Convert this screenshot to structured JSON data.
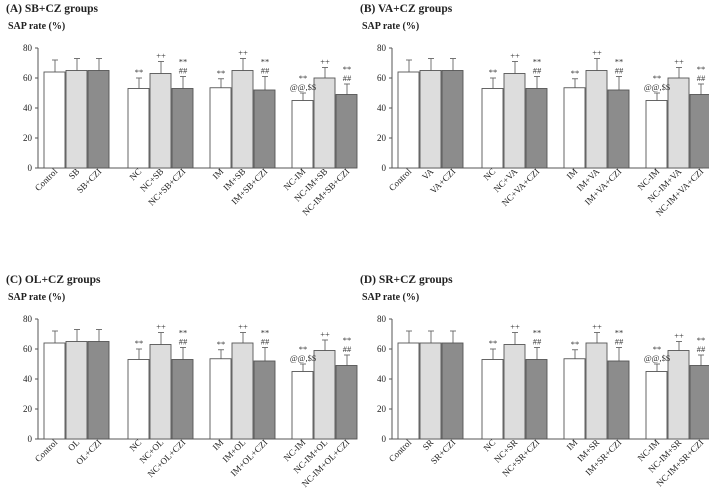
{
  "chart_data": [
    {
      "type": "bar",
      "title": "(A) SB+CZ groups",
      "ylabel": "SAP rate (%)",
      "ylim": [
        0,
        80
      ],
      "yticks": [
        "0",
        "20",
        "40",
        "60",
        "80"
      ],
      "categories": [
        "Control",
        "SB",
        "SB+CZI",
        "NC",
        "NC+SB",
        "NC+SB+CZI",
        "IM",
        "IM+SB",
        "IM+SB+CZI",
        "NC-IM",
        "NC-IM+SB",
        "NC-IM+SB+CZI"
      ],
      "values": [
        64,
        65,
        65,
        53,
        63,
        53,
        53.5,
        65,
        52,
        45,
        60,
        49
      ],
      "errors": [
        8,
        8,
        8,
        7,
        8,
        8,
        6,
        8,
        9,
        5,
        7,
        7
      ],
      "colors": [
        "#ffffff",
        "#dddddd",
        "#8c8c8c",
        "#ffffff",
        "#dddddd",
        "#8c8c8c",
        "#ffffff",
        "#dddddd",
        "#8c8c8c",
        "#ffffff",
        "#dddddd",
        "#8c8c8c"
      ],
      "annotations": [
        {
          "bar": 3,
          "lines": [
            "**"
          ]
        },
        {
          "bar": 4,
          "lines": [
            "++"
          ]
        },
        {
          "bar": 5,
          "lines": [
            "**",
            "##"
          ]
        },
        {
          "bar": 6,
          "lines": [
            "**"
          ]
        },
        {
          "bar": 7,
          "lines": [
            "++"
          ]
        },
        {
          "bar": 8,
          "lines": [
            "**",
            "##"
          ]
        },
        {
          "bar": 9,
          "lines": [
            "**",
            "@@,$$"
          ]
        },
        {
          "bar": 10,
          "lines": [
            "++"
          ]
        },
        {
          "bar": 11,
          "lines": [
            "**",
            "##"
          ]
        }
      ]
    },
    {
      "type": "bar",
      "title": "(B) VA+CZ groups",
      "ylabel": "SAP rate (%)",
      "ylim": [
        0,
        80
      ],
      "yticks": [
        "0",
        "20",
        "40",
        "60",
        "80"
      ],
      "categories": [
        "Control",
        "VA",
        "VA+CZI",
        "NC",
        "NC+VA",
        "NC+VA+CZI",
        "IM",
        "IM+VA",
        "IM+VA+CZI",
        "NC-IM",
        "NC-IM+VA",
        "NC-IM+VA+CZI"
      ],
      "values": [
        64,
        65,
        65,
        53,
        63,
        53,
        53.5,
        65,
        52,
        45,
        60,
        49
      ],
      "errors": [
        8,
        8,
        8,
        7,
        8,
        8,
        6,
        8,
        9,
        5,
        7,
        7
      ],
      "colors": [
        "#ffffff",
        "#dddddd",
        "#8c8c8c",
        "#ffffff",
        "#dddddd",
        "#8c8c8c",
        "#ffffff",
        "#dddddd",
        "#8c8c8c",
        "#ffffff",
        "#dddddd",
        "#8c8c8c"
      ],
      "annotations": [
        {
          "bar": 3,
          "lines": [
            "**"
          ]
        },
        {
          "bar": 4,
          "lines": [
            "++"
          ]
        },
        {
          "bar": 5,
          "lines": [
            "**",
            "##"
          ]
        },
        {
          "bar": 6,
          "lines": [
            "**"
          ]
        },
        {
          "bar": 7,
          "lines": [
            "++"
          ]
        },
        {
          "bar": 8,
          "lines": [
            "**",
            "##"
          ]
        },
        {
          "bar": 9,
          "lines": [
            "**",
            "@@,$$"
          ]
        },
        {
          "bar": 10,
          "lines": [
            "++"
          ]
        },
        {
          "bar": 11,
          "lines": [
            "**",
            "##"
          ]
        }
      ]
    },
    {
      "type": "bar",
      "title": "(C) OL+CZ groups",
      "ylabel": "SAP rate (%)",
      "ylim": [
        0,
        80
      ],
      "yticks": [
        "0",
        "20",
        "40",
        "60",
        "80"
      ],
      "categories": [
        "Control",
        "OL",
        "OL+CZI",
        "NC",
        "NC+OL",
        "NC+OL+CZI",
        "IM",
        "IM+OL",
        "IM+OL+CZI",
        "NC-IM",
        "NC-IM+OL",
        "NC-IM+OL+CZI"
      ],
      "values": [
        64,
        65,
        65,
        53,
        63,
        53,
        53.5,
        64,
        52,
        45,
        59,
        49
      ],
      "errors": [
        8,
        8,
        8,
        7,
        8,
        8,
        6,
        7,
        9,
        5,
        7,
        7
      ],
      "colors": [
        "#ffffff",
        "#dddddd",
        "#8c8c8c",
        "#ffffff",
        "#dddddd",
        "#8c8c8c",
        "#ffffff",
        "#dddddd",
        "#8c8c8c",
        "#ffffff",
        "#dddddd",
        "#8c8c8c"
      ],
      "annotations": [
        {
          "bar": 3,
          "lines": [
            "**"
          ]
        },
        {
          "bar": 4,
          "lines": [
            "++"
          ]
        },
        {
          "bar": 5,
          "lines": [
            "**",
            "##"
          ]
        },
        {
          "bar": 6,
          "lines": [
            "**"
          ]
        },
        {
          "bar": 7,
          "lines": [
            "++"
          ]
        },
        {
          "bar": 8,
          "lines": [
            "**",
            "##"
          ]
        },
        {
          "bar": 9,
          "lines": [
            "**",
            "@@,$$"
          ]
        },
        {
          "bar": 10,
          "lines": [
            "++"
          ]
        },
        {
          "bar": 11,
          "lines": [
            "**",
            "##"
          ]
        }
      ]
    },
    {
      "type": "bar",
      "title": "(D) SR+CZ groups",
      "ylabel": "SAP rate (%)",
      "ylim": [
        0,
        80
      ],
      "yticks": [
        "0",
        "20",
        "40",
        "60",
        "80"
      ],
      "categories": [
        "Control",
        "SR",
        "SR+CZI",
        "NC",
        "NC+SR",
        "NC+SR+CZI",
        "IM",
        "IM+SR",
        "IM+SR+CZI",
        "NC-IM",
        "NC-IM+SR",
        "NC-IM+SR+CZI"
      ],
      "values": [
        64,
        64,
        64,
        53,
        63,
        53,
        53.5,
        64,
        52,
        45,
        59,
        49
      ],
      "errors": [
        8,
        8,
        8,
        7,
        8,
        8,
        6,
        7,
        9,
        5,
        6,
        7
      ],
      "colors": [
        "#ffffff",
        "#dddddd",
        "#8c8c8c",
        "#ffffff",
        "#dddddd",
        "#8c8c8c",
        "#ffffff",
        "#dddddd",
        "#8c8c8c",
        "#ffffff",
        "#dddddd",
        "#8c8c8c"
      ],
      "annotations": [
        {
          "bar": 3,
          "lines": [
            "**"
          ]
        },
        {
          "bar": 4,
          "lines": [
            "++"
          ]
        },
        {
          "bar": 5,
          "lines": [
            "**",
            "##"
          ]
        },
        {
          "bar": 6,
          "lines": [
            "**"
          ]
        },
        {
          "bar": 7,
          "lines": [
            "++"
          ]
        },
        {
          "bar": 8,
          "lines": [
            "**",
            "##"
          ]
        },
        {
          "bar": 9,
          "lines": [
            "**",
            "@@,$$"
          ]
        },
        {
          "bar": 10,
          "lines": [
            "++"
          ]
        },
        {
          "bar": 11,
          "lines": [
            "**",
            "##"
          ]
        }
      ]
    }
  ]
}
